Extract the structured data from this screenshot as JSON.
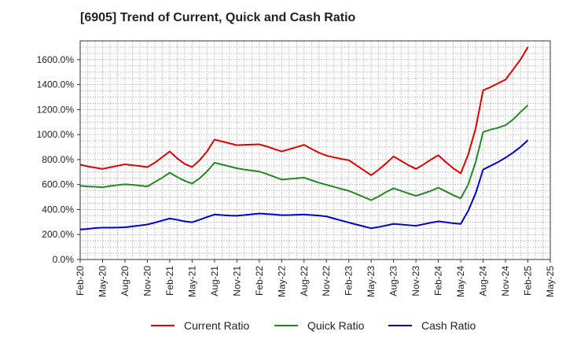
{
  "chart_data": {
    "type": "line",
    "title": "[6905]  Trend of Current, Quick and Cash Ratio",
    "xlabel": "",
    "ylabel": "",
    "ylim": [
      0,
      1750
    ],
    "y_ticks": [
      0,
      200,
      400,
      600,
      800,
      1000,
      1200,
      1400,
      1600
    ],
    "y_tick_labels": [
      "0.0%",
      "200.0%",
      "400.0%",
      "600.0%",
      "800.0%",
      "1000.0%",
      "1200.0%",
      "1400.0%",
      "1600.0%"
    ],
    "x_tick_labels": [
      "Feb-20",
      "May-20",
      "Aug-20",
      "Nov-20",
      "Feb-21",
      "May-21",
      "Aug-21",
      "Nov-21",
      "Feb-22",
      "May-22",
      "Aug-22",
      "Nov-22",
      "Feb-23",
      "May-23",
      "Aug-23",
      "Nov-23",
      "Feb-24",
      "May-24",
      "Aug-24",
      "Nov-24",
      "Feb-25",
      "May-25"
    ],
    "x_months": [
      "Feb-20",
      "Mar-20",
      "Apr-20",
      "May-20",
      "Jun-20",
      "Jul-20",
      "Aug-20",
      "Sep-20",
      "Oct-20",
      "Nov-20",
      "Dec-20",
      "Jan-21",
      "Feb-21",
      "Mar-21",
      "Apr-21",
      "May-21",
      "Jun-21",
      "Jul-21",
      "Aug-21",
      "Sep-21",
      "Oct-21",
      "Nov-21",
      "Dec-21",
      "Jan-22",
      "Feb-22",
      "Mar-22",
      "Apr-22",
      "May-22",
      "Jun-22",
      "Jul-22",
      "Aug-22",
      "Sep-22",
      "Oct-22",
      "Nov-22",
      "Dec-22",
      "Jan-23",
      "Feb-23",
      "Mar-23",
      "Apr-23",
      "May-23",
      "Jun-23",
      "Jul-23",
      "Aug-23",
      "Sep-23",
      "Oct-23",
      "Nov-23",
      "Dec-23",
      "Jan-24",
      "Feb-24",
      "Mar-24",
      "Apr-24",
      "May-24",
      "Jun-24",
      "Jul-24",
      "Aug-24",
      "Sep-24",
      "Oct-24",
      "Nov-24",
      "Dec-24",
      "Jan-25",
      "Feb-25"
    ],
    "legend_position": "bottom",
    "grid": true,
    "series": [
      {
        "name": "Current Ratio",
        "color": "#dd0000",
        "values": [
          760,
          745,
          735,
          725,
          738,
          750,
          762,
          755,
          748,
          740,
          775,
          820,
          865,
          810,
          765,
          740,
          795,
          865,
          960,
          945,
          930,
          915,
          918,
          920,
          922,
          905,
          885,
          865,
          882,
          900,
          918,
          885,
          855,
          832,
          818,
          805,
          795,
          755,
          715,
          675,
          720,
          770,
          825,
          790,
          755,
          725,
          760,
          800,
          835,
          780,
          730,
          690,
          840,
          1050,
          1355,
          1380,
          1410,
          1440,
          1520,
          1600,
          1700
        ]
      },
      {
        "name": "Quick Ratio",
        "color": "#228822",
        "values": [
          590,
          585,
          582,
          578,
          588,
          596,
          602,
          598,
          592,
          585,
          620,
          655,
          695,
          660,
          630,
          608,
          650,
          705,
          775,
          760,
          745,
          730,
          720,
          712,
          704,
          685,
          662,
          640,
          645,
          650,
          656,
          635,
          615,
          598,
          582,
          565,
          550,
          525,
          500,
          475,
          505,
          540,
          570,
          550,
          528,
          510,
          528,
          550,
          575,
          545,
          515,
          490,
          600,
          780,
          1020,
          1040,
          1055,
          1075,
          1120,
          1180,
          1235
        ]
      },
      {
        "name": "Cash Ratio",
        "color": "#0000cc",
        "values": [
          240,
          245,
          252,
          255,
          255,
          256,
          258,
          265,
          272,
          280,
          295,
          312,
          328,
          318,
          305,
          298,
          318,
          340,
          360,
          356,
          352,
          350,
          356,
          362,
          368,
          364,
          360,
          355,
          356,
          358,
          360,
          356,
          352,
          345,
          328,
          312,
          296,
          280,
          265,
          250,
          260,
          272,
          285,
          280,
          275,
          270,
          282,
          295,
          305,
          298,
          290,
          285,
          390,
          530,
          720,
          750,
          780,
          815,
          855,
          900,
          955
        ]
      }
    ]
  }
}
